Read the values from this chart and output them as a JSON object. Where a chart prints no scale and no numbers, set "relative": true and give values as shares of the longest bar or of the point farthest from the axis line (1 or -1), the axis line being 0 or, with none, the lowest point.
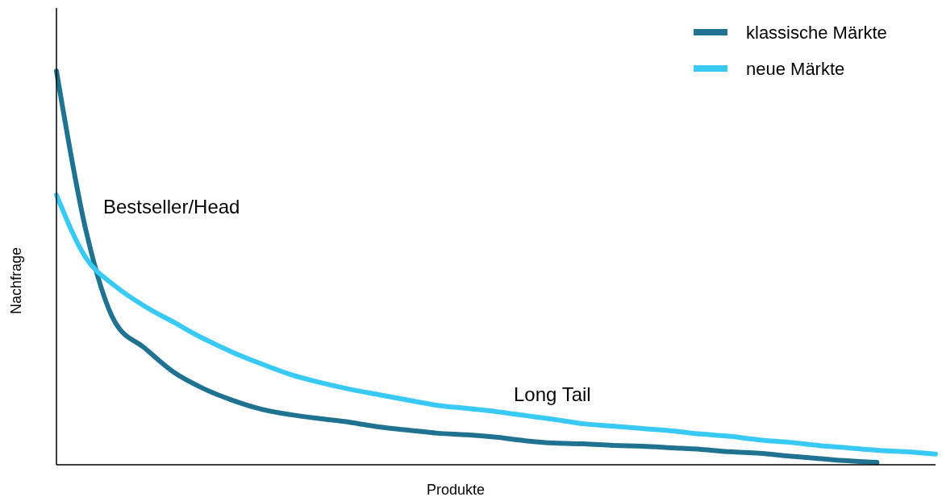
{
  "chart_data": {
    "type": "line",
    "relative": true,
    "xlabel": "Produkte",
    "ylabel": "Nachfrage",
    "legend": "top right",
    "marker": "none",
    "line_style": "solid",
    "categories": [
      null,
      null,
      null,
      null,
      null,
      null,
      null,
      null,
      null,
      null,
      null,
      null,
      null,
      null,
      null,
      null,
      null,
      null,
      null,
      null,
      null,
      null,
      null,
      null,
      null,
      null,
      null,
      null,
      null,
      null,
      null
    ],
    "series": [
      {
        "name": "klassische Märkte",
        "color": "#1f7391",
        "values": [
          1,
          0.597,
          0.362,
          0.297,
          0.235,
          0.194,
          0.164,
          0.141,
          0.127,
          0.117,
          0.108,
          0.096,
          0.088,
          0.08,
          0.076,
          0.07,
          0.061,
          0.055,
          0.053,
          0.049,
          0.047,
          0.043,
          0.039,
          0.033,
          0.029,
          0.022,
          0.016,
          0.01,
          0.006,
          null,
          null
        ]
      },
      {
        "name": "neue Märkte",
        "color": "#38c9f4",
        "values": [
          0.685,
          0.526,
          0.454,
          0.403,
          0.362,
          0.321,
          0.286,
          0.256,
          0.229,
          0.209,
          0.192,
          0.178,
          0.164,
          0.151,
          0.143,
          0.135,
          0.125,
          0.115,
          0.104,
          0.098,
          0.092,
          0.086,
          0.078,
          0.072,
          0.063,
          0.057,
          0.049,
          0.043,
          0.037,
          0.033,
          0.027
        ]
      }
    ],
    "annotations": [
      "Bestseller/Head",
      "Long Tail"
    ]
  }
}
